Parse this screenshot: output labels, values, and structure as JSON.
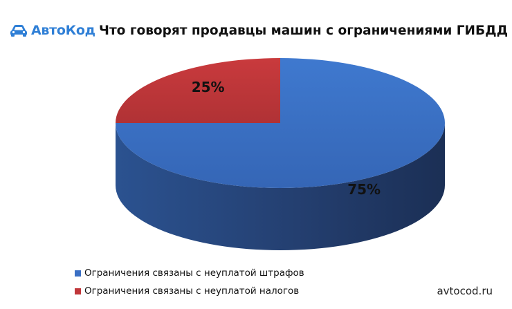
{
  "header": {
    "logo_text": "АвтоКод",
    "logo_icon": "car-icon",
    "title": "Что говорят продавцы машин с ограничениями ГИБДД"
  },
  "chart_data": {
    "type": "pie",
    "style": "3d",
    "categories": [
      "Ограничения связаны с неуплатой штрафов",
      "Ограничения связаны с неуплатой налогов"
    ],
    "values": [
      75,
      25
    ],
    "labels": [
      "75%",
      "25%"
    ],
    "colors": [
      "#3a6fc4",
      "#c0363a"
    ],
    "legend_position": "bottom-left"
  },
  "colors": {
    "brand": "#2f7fd6"
  },
  "footer": {
    "site": "avtocod.ru"
  }
}
